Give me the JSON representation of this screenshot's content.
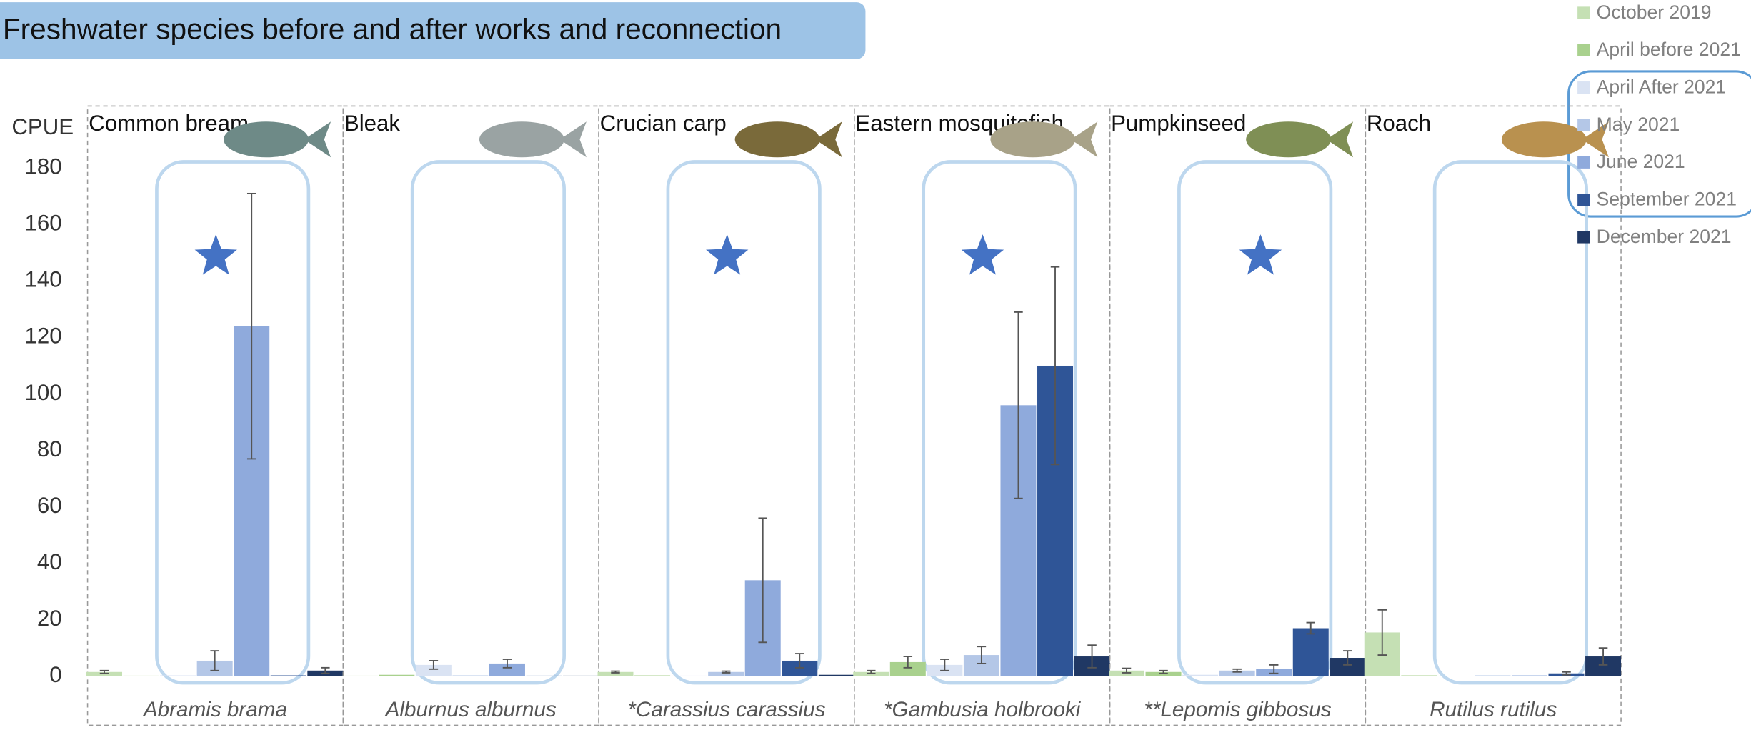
{
  "chart_data": {
    "type": "bar",
    "title": "Freshwater species before and after works and reconnection",
    "y_label": "CPUE",
    "categories": [
      "Common bream",
      "Bleak",
      "Crucian carp",
      "Eastern mosquitofish",
      "Pumpkinseed",
      "Roach"
    ],
    "scientific_names": [
      "Abramis brama",
      "Alburnus alburnus",
      "*Carassius carassius",
      "*Gambusia holbrooki",
      "**Lepomis gibbosus",
      "Rutilus rutilus"
    ],
    "significant": [
      true,
      false,
      true,
      true,
      true,
      false
    ],
    "ylim": [
      0,
      202
    ],
    "yticks": [
      0,
      20,
      40,
      60,
      80,
      100,
      120,
      140,
      160,
      180
    ],
    "legend": "upper right",
    "series": [
      {
        "name": "October 2019",
        "color": "#c5e0b4",
        "values": [
          1.5,
          0.2,
          1.5,
          1.5,
          2,
          15.5
        ],
        "errors": [
          0.5,
          0,
          0.3,
          0.5,
          0.8,
          8
        ]
      },
      {
        "name": "April before 2021",
        "color": "#a9d18e",
        "values": [
          0.2,
          0.5,
          0.3,
          5,
          1.5,
          0.3
        ],
        "errors": [
          0,
          0,
          0,
          2,
          0.5,
          0
        ]
      },
      {
        "name": "April After 2021",
        "color": "#dae3f3",
        "values": [
          0.3,
          4,
          0.2,
          4,
          0.5,
          0.1
        ],
        "errors": [
          0,
          1.5,
          0,
          2,
          0,
          0
        ]
      },
      {
        "name": "May 2021",
        "color": "#b4c7e7",
        "values": [
          5.5,
          0.3,
          1.5,
          7.5,
          2,
          0.3
        ],
        "errors": [
          3.5,
          0,
          0.3,
          3,
          0.5,
          0
        ]
      },
      {
        "name": "June 2021",
        "color": "#8faadc",
        "values": [
          124,
          4.5,
          34,
          96,
          2.5,
          0.3
        ],
        "errors": [
          47,
          1.5,
          22,
          33,
          1.5,
          0
        ]
      },
      {
        "name": "September 2021",
        "color": "#2f5597",
        "values": [
          0.3,
          0.2,
          5.5,
          110,
          17,
          1
        ],
        "errors": [
          0,
          0,
          2.5,
          35,
          2,
          0.5
        ]
      },
      {
        "name": "December 2021",
        "color": "#203864",
        "values": [
          2,
          0.2,
          0.5,
          7,
          6.5,
          7
        ],
        "errors": [
          1,
          0,
          0,
          4,
          2.5,
          3
        ]
      }
    ]
  }
}
